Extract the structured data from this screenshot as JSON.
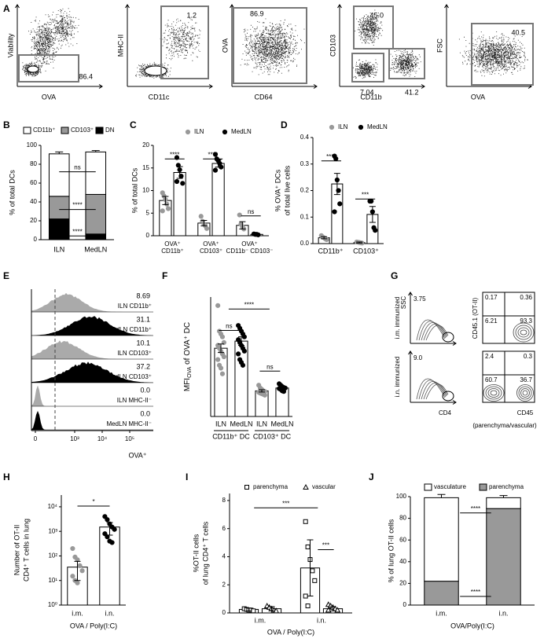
{
  "flow_a": {
    "panel": "A",
    "plots": [
      {
        "y_label": "Viability",
        "x_label": "OVA",
        "gates": [
          "86.4"
        ]
      },
      {
        "y_label": "MHC-II",
        "x_label": "CD11c",
        "gates": [
          "1.2"
        ]
      },
      {
        "y_label": "OVA",
        "x_label": "CD64",
        "gates": [
          "86.9"
        ]
      },
      {
        "y_label": "CD103",
        "x_label": "CD11b",
        "gates": [
          "45.0",
          "7.04",
          "41.2"
        ]
      },
      {
        "y_label": "FSC",
        "x_label": "OVA",
        "gates": [
          "40.5"
        ]
      }
    ]
  },
  "flow_e": {
    "panel": "E",
    "rows": [
      {
        "name": "ILN CD11b⁺",
        "value": "8.69"
      },
      {
        "name": "MedLN CD11b⁺",
        "value": "31.1"
      },
      {
        "name": "ILN CD103⁺",
        "value": "10.1"
      },
      {
        "name": "MedLN CD103⁺",
        "value": "37.2"
      },
      {
        "name": "ILN MHC-II⁻",
        "value": "0.0"
      },
      {
        "name": "MedLN MHC-II⁻",
        "value": "0.0"
      }
    ],
    "x_ticks": [
      "0",
      "10³",
      "10⁴",
      "10⁵"
    ],
    "x_label": "OVA⁺"
  },
  "flow_g": {
    "panel": "G",
    "rows": [
      {
        "name": "i.m. immunized",
        "ssc_gate": "3.75",
        "quadrants": [
          "0.17",
          "0.36",
          "6.21",
          "93.3"
        ]
      },
      {
        "name": "i.n. immunized",
        "ssc_gate": "9.0",
        "quadrants": [
          "2.4",
          "0.3",
          "60.7",
          "36.7"
        ]
      }
    ],
    "y_labels": [
      "SSC",
      "CD45.1 (OT-II)"
    ],
    "x_labels": [
      "CD4",
      "CD45"
    ],
    "note": "(parenchyma/vascular)"
  },
  "chart_data": [
    {
      "type": "stacked_bar",
      "panel": "B",
      "categories": [
        "ILN",
        "MedLN"
      ],
      "y_label": "% of total DCs",
      "series": [
        {
          "name": "DN",
          "color": "#000000",
          "values": [
            22,
            6
          ],
          "errors": [
            2,
            1
          ]
        },
        {
          "name": "CD103⁺",
          "color": "#999999",
          "values": [
            24,
            42
          ],
          "errors": [
            1.5,
            1.5
          ]
        },
        {
          "name": "CD11b⁺",
          "color": "#ffffff",
          "values": [
            45,
            45
          ],
          "errors": [
            2,
            1.5
          ]
        }
      ],
      "legend": true,
      "ylim": [
        0,
        100
      ],
      "yticks": [
        0,
        20,
        40,
        60,
        80,
        100
      ],
      "annotations": [
        "ns",
        "****",
        "****"
      ]
    },
    {
      "type": "bar",
      "panel": "C",
      "categories": [
        [
          "OVA⁺",
          "CD11b⁺"
        ],
        [
          "OVA⁺",
          "CD103⁺"
        ],
        [
          "OVA⁺",
          "CD11b⁻ CD103⁻"
        ]
      ],
      "y_label": "% of total DCs",
      "bar_fill": "#ffffff",
      "series": [
        {
          "name": "ILN",
          "color": "#999999",
          "marker": "circle",
          "values": [
            7.8,
            2.8,
            2.3
          ],
          "errors": [
            0.9,
            0.6,
            0.8
          ],
          "points": [
            [
              9.5,
              8.8,
              8,
              7,
              6,
              5.5
            ],
            [
              4.3,
              3.2,
              2.6,
              2.2,
              1.6
            ],
            [
              4.6,
              2.6,
              2,
              1.5
            ]
          ]
        },
        {
          "name": "MedLN",
          "color": "#000000",
          "marker": "circle",
          "values": [
            14,
            16,
            0.3
          ],
          "errors": [
            1.3,
            0.8,
            0.1
          ],
          "points": [
            [
              17.3,
              15.6,
              14.6,
              13.2,
              11.6,
              12
            ],
            [
              18,
              17,
              16.6,
              16,
              15.2,
              14.5
            ],
            [
              0.4,
              0.3,
              0.3,
              0.2
            ]
          ]
        }
      ],
      "legend": true,
      "ylim": [
        0,
        20
      ],
      "yticks": [
        0,
        5,
        10,
        15,
        20
      ],
      "annotations": [
        "****",
        "****",
        "ns"
      ]
    },
    {
      "type": "bar",
      "panel": "D",
      "categories": [
        [
          "CD11b⁺"
        ],
        [
          "CD103⁺"
        ]
      ],
      "y_label": [
        "% OVA⁺ DCs",
        "of total live cells"
      ],
      "bar_fill": "#ffffff",
      "series": [
        {
          "name": "ILN",
          "color": "#999999",
          "marker": "circle",
          "values": [
            0.022,
            0.004
          ],
          "errors": [
            0.004,
            0.002
          ],
          "points": [
            [
              0.03,
              0.025,
              0.022,
              0.018,
              0.015
            ],
            [
              0.006,
              0.005,
              0.004,
              0.003,
              0.002
            ]
          ]
        },
        {
          "name": "MedLN",
          "color": "#000000",
          "marker": "circle",
          "values": [
            0.225,
            0.11
          ],
          "errors": [
            0.04,
            0.03
          ],
          "points": [
            [
              0.33,
              0.32,
              0.24,
              0.2,
              0.15,
              0.12
            ],
            [
              0.16,
              0.16,
              0.12,
              0.06,
              0.05
            ]
          ]
        }
      ],
      "legend": true,
      "ylim": [
        0,
        0.4
      ],
      "yticks": [
        {
          "value": 0,
          "label": "0.0"
        },
        0.1,
        0.2,
        0.3,
        0.4
      ],
      "annotations": [
        "****",
        "***"
      ]
    },
    {
      "type": "bar",
      "panel": "F",
      "categories": [
        [
          "ILN"
        ],
        [
          "MedLN"
        ],
        [
          "ILN"
        ],
        [
          "MedLN"
        ]
      ],
      "groups": [
        "CD11b⁺ DC",
        "CD103⁺ DC"
      ],
      "y_label": [
        "MFI",
        "OVA",
        " of OVA⁺ DC"
      ],
      "bar_fill": "#ffffff",
      "marker": "circle",
      "values": [
        2400,
        2650,
        900,
        1000
      ],
      "errors": [
        150,
        150,
        40,
        40
      ],
      "point_colors": [
        "#999999",
        "#000000",
        "#999999",
        "#000000"
      ],
      "points": [
        [
          3900,
          3000,
          2900,
          2800,
          2600,
          2500,
          2400,
          2300,
          2200,
          2100,
          2000,
          1800,
          1700,
          1500
        ],
        [
          3200,
          3100,
          3000,
          2900,
          2800,
          2700,
          2600,
          2500,
          2400,
          2300,
          2200,
          2000,
          1900,
          1800
        ],
        [
          1100,
          1000,
          950,
          900,
          880,
          850,
          820,
          800,
          780,
          750
        ],
        [
          1150,
          1100,
          1050,
          1020,
          1000,
          980,
          950,
          900,
          880
        ]
      ],
      "ylim": [
        0,
        4200
      ],
      "annotations": [
        "ns",
        "ns",
        "****"
      ]
    },
    {
      "type": "bar",
      "panel": "H",
      "categories": [
        [
          "i.m."
        ],
        [
          "i.n."
        ]
      ],
      "x_label": "OVA / Poly(I:C)",
      "y_label": [
        "Number of OT-II",
        "CD4⁺ T cells in lung"
      ],
      "bar_fill": "#ffffff",
      "marker": "circle",
      "yscale": "log",
      "values": [
        35,
        1500
      ],
      "errors": [
        25,
        800
      ],
      "point_colors": [
        "#999999",
        "#000000"
      ],
      "points": [
        [
          200,
          90,
          70,
          40,
          25,
          15,
          10,
          8
        ],
        [
          4000,
          3000,
          2000,
          1500,
          1200,
          800,
          600,
          400,
          350
        ]
      ],
      "ylim": [
        1,
        30000
      ],
      "yticks": [
        {
          "value": 1,
          "label": "10⁰"
        },
        {
          "value": 10,
          "label": "10¹"
        },
        {
          "value": 100,
          "label": "10²"
        },
        {
          "value": 1000,
          "label": "10³"
        },
        {
          "value": 10000,
          "label": "10⁴"
        }
      ],
      "annotations": [
        "*"
      ]
    },
    {
      "type": "bar",
      "panel": "I",
      "categories": [
        [
          "i.m."
        ],
        [
          "i.n."
        ]
      ],
      "x_label": "OVA / Poly(I:C)",
      "y_label": [
        "%OT-II cells",
        "of lung CD4⁺ T cells"
      ],
      "bar_fill": "#ffffff",
      "series": [
        {
          "name": "parenchyma",
          "color": "#000000",
          "marker": "open-square",
          "values": [
            0.25,
            3.2
          ],
          "errors": [
            0.1,
            2
          ],
          "points": [
            [
              0.3,
              0.25,
              0.2,
              0.2,
              0.15
            ],
            [
              6.5,
              4.7,
              3.8,
              3,
              2.3,
              1.2,
              0.5
            ]
          ]
        },
        {
          "name": "vascular",
          "color": "#000000",
          "marker": "open-triangle",
          "values": [
            0.3,
            0.3
          ],
          "errors": [
            0.15,
            0.15
          ],
          "points": [
            [
              0.5,
              0.4,
              0.3,
              0.2,
              0.15
            ],
            [
              0.6,
              0.5,
              0.4,
              0.3,
              0.2,
              0.2
            ]
          ]
        }
      ],
      "legend": true,
      "ylim": [
        0,
        8.5
      ],
      "yticks": [
        0,
        2,
        4,
        6,
        8
      ],
      "annotations": [
        "***",
        "***"
      ]
    },
    {
      "type": "stacked_bar",
      "panel": "J",
      "categories": [
        "i.m.",
        "i.n."
      ],
      "x_label": "OVA/Poly(I:C)",
      "y_label": "% of lung OT-II cells",
      "series": [
        {
          "name": "parenchyma",
          "color": "#999999",
          "values": [
            22,
            89
          ],
          "errors": [
            3,
            2
          ]
        },
        {
          "name": "vasculature",
          "color": "#ffffff",
          "values": [
            77,
            10
          ],
          "errors": [
            3,
            2
          ]
        }
      ],
      "legend": true,
      "ylim": [
        0,
        100
      ],
      "yticks": [
        0,
        20,
        40,
        60,
        80,
        100
      ],
      "annotations": [
        "****",
        "****"
      ]
    }
  ]
}
